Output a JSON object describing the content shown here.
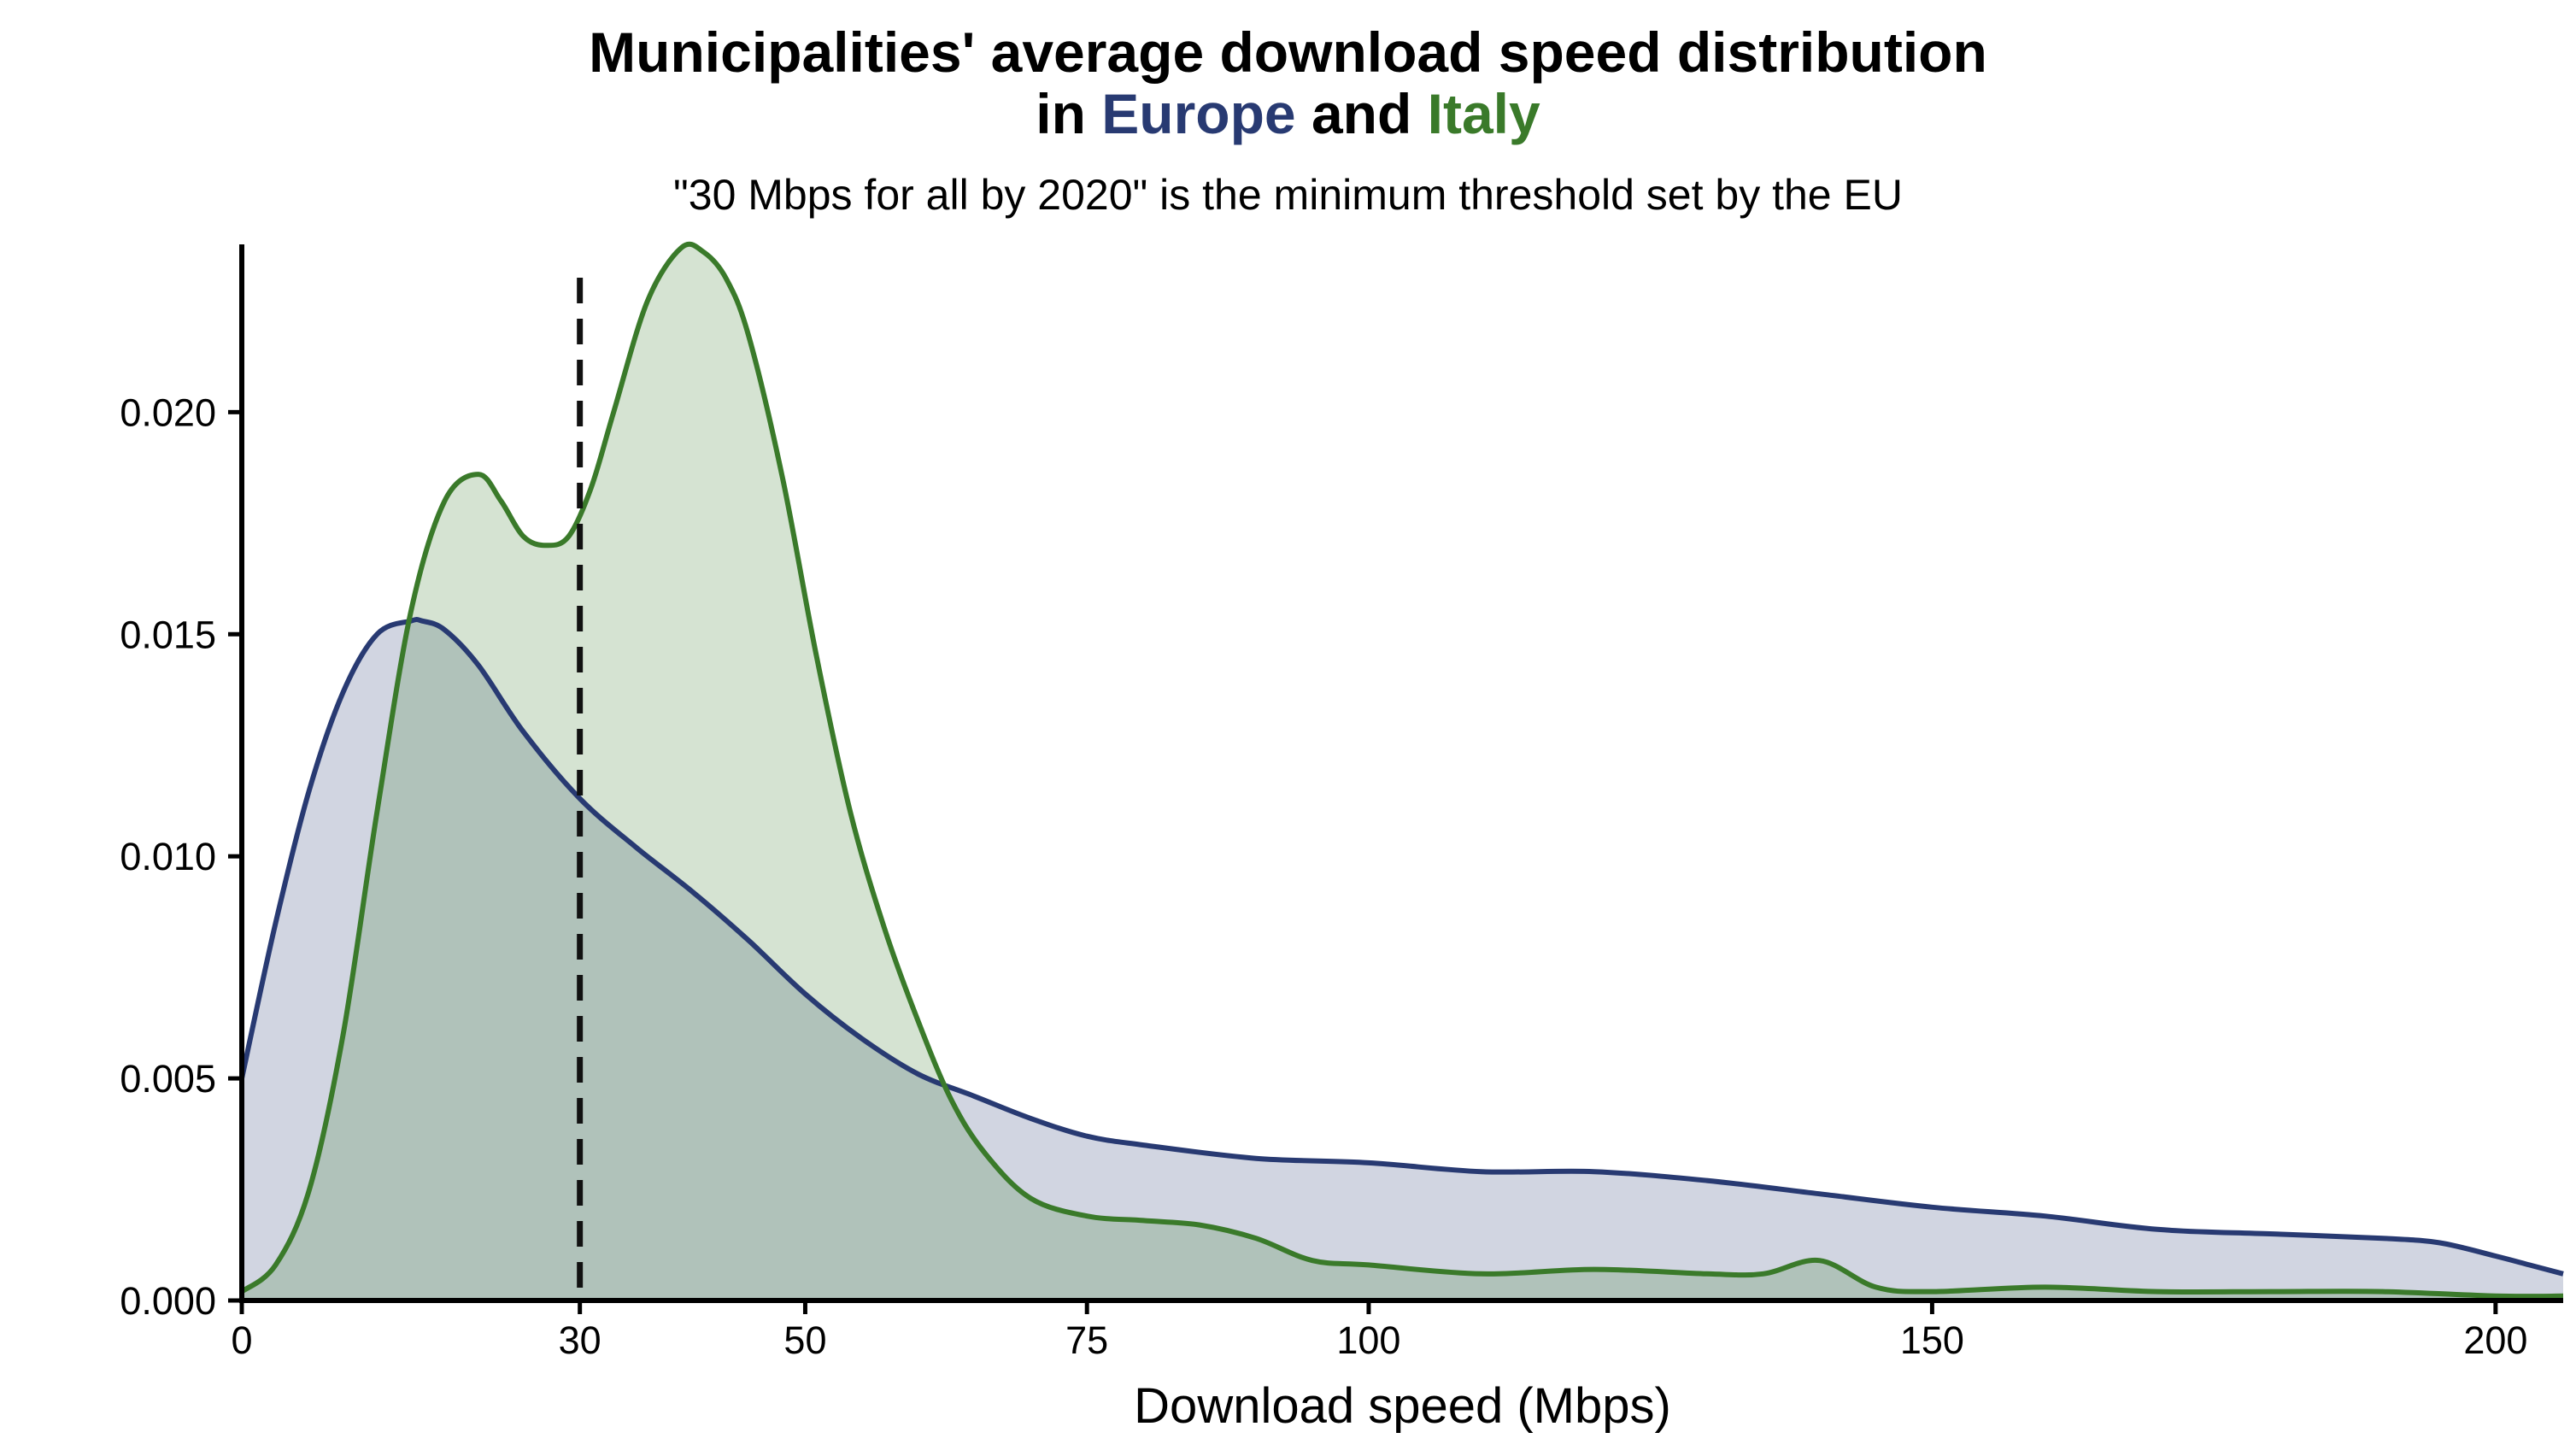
{
  "chart_data": {
    "type": "area",
    "title": {
      "line1": "Municipalities' average download speed distribution",
      "line2_prefix": "in ",
      "line2_mid": " and ",
      "series_labels": [
        "Europe",
        "Italy"
      ]
    },
    "subtitle": "\"30 Mbps for all by 2020\" is the minimum threshold set by the EU",
    "xlabel": "Download speed (Mbps)",
    "ylabel": "",
    "xlim": [
      0,
      206
    ],
    "ylim": [
      0,
      0.0237
    ],
    "x_ticks": [
      0,
      30,
      50,
      75,
      100,
      150,
      200
    ],
    "y_ticks": [
      0.0,
      0.005,
      0.01,
      0.015,
      0.02
    ],
    "y_tick_labels": [
      "0.000",
      "0.005",
      "0.010",
      "0.015",
      "0.020"
    ],
    "threshold": {
      "x": 30,
      "style": "dashed"
    },
    "grid": false,
    "legend": "none",
    "series": [
      {
        "name": "Europe",
        "color": "#283a72",
        "fill": "#d1d5e3",
        "x": [
          0,
          3,
          6,
          9,
          12,
          15,
          16,
          18,
          21,
          25,
          30,
          35,
          40,
          45,
          50,
          55,
          60,
          65,
          70,
          75,
          80,
          90,
          100,
          110,
          120,
          130,
          140,
          150,
          160,
          170,
          180,
          190,
          195,
          200,
          203,
          206
        ],
        "y": [
          0.005,
          0.0085,
          0.0115,
          0.0137,
          0.015,
          0.0153,
          0.0153,
          0.0151,
          0.0143,
          0.0128,
          0.0113,
          0.0102,
          0.0092,
          0.0081,
          0.0069,
          0.0059,
          0.0051,
          0.0046,
          0.0041,
          0.0037,
          0.0035,
          0.0032,
          0.0031,
          0.0029,
          0.0029,
          0.0027,
          0.0024,
          0.0021,
          0.0019,
          0.0016,
          0.0015,
          0.0014,
          0.0013,
          0.001,
          0.0008,
          0.0006
        ]
      },
      {
        "name": "Italy",
        "color": "#3a7a2a",
        "fill": "#d3e4cf",
        "x": [
          0,
          3,
          6,
          9,
          12,
          15,
          18,
          21,
          23,
          25,
          27,
          29,
          31,
          33,
          36,
          39,
          41,
          43,
          45,
          48,
          51,
          54,
          57,
          60,
          63,
          66,
          70,
          75,
          80,
          85,
          90,
          95,
          100,
          110,
          120,
          130,
          135,
          140,
          145,
          150,
          160,
          170,
          180,
          190,
          200,
          206
        ],
        "y": [
          0.0002,
          0.0008,
          0.0025,
          0.006,
          0.011,
          0.0155,
          0.018,
          0.0186,
          0.018,
          0.0172,
          0.017,
          0.0172,
          0.0183,
          0.02,
          0.0225,
          0.0237,
          0.0236,
          0.023,
          0.0217,
          0.0185,
          0.0145,
          0.011,
          0.0084,
          0.0063,
          0.0045,
          0.0033,
          0.0023,
          0.0019,
          0.0018,
          0.0017,
          0.0014,
          0.0009,
          0.0008,
          0.0006,
          0.0007,
          0.0006,
          0.0006,
          0.0009,
          0.0003,
          0.0002,
          0.0003,
          0.0002,
          0.0002,
          0.0002,
          0.0001,
          0.0001
        ]
      }
    ],
    "overlap_fill": "#b3c4bc"
  }
}
